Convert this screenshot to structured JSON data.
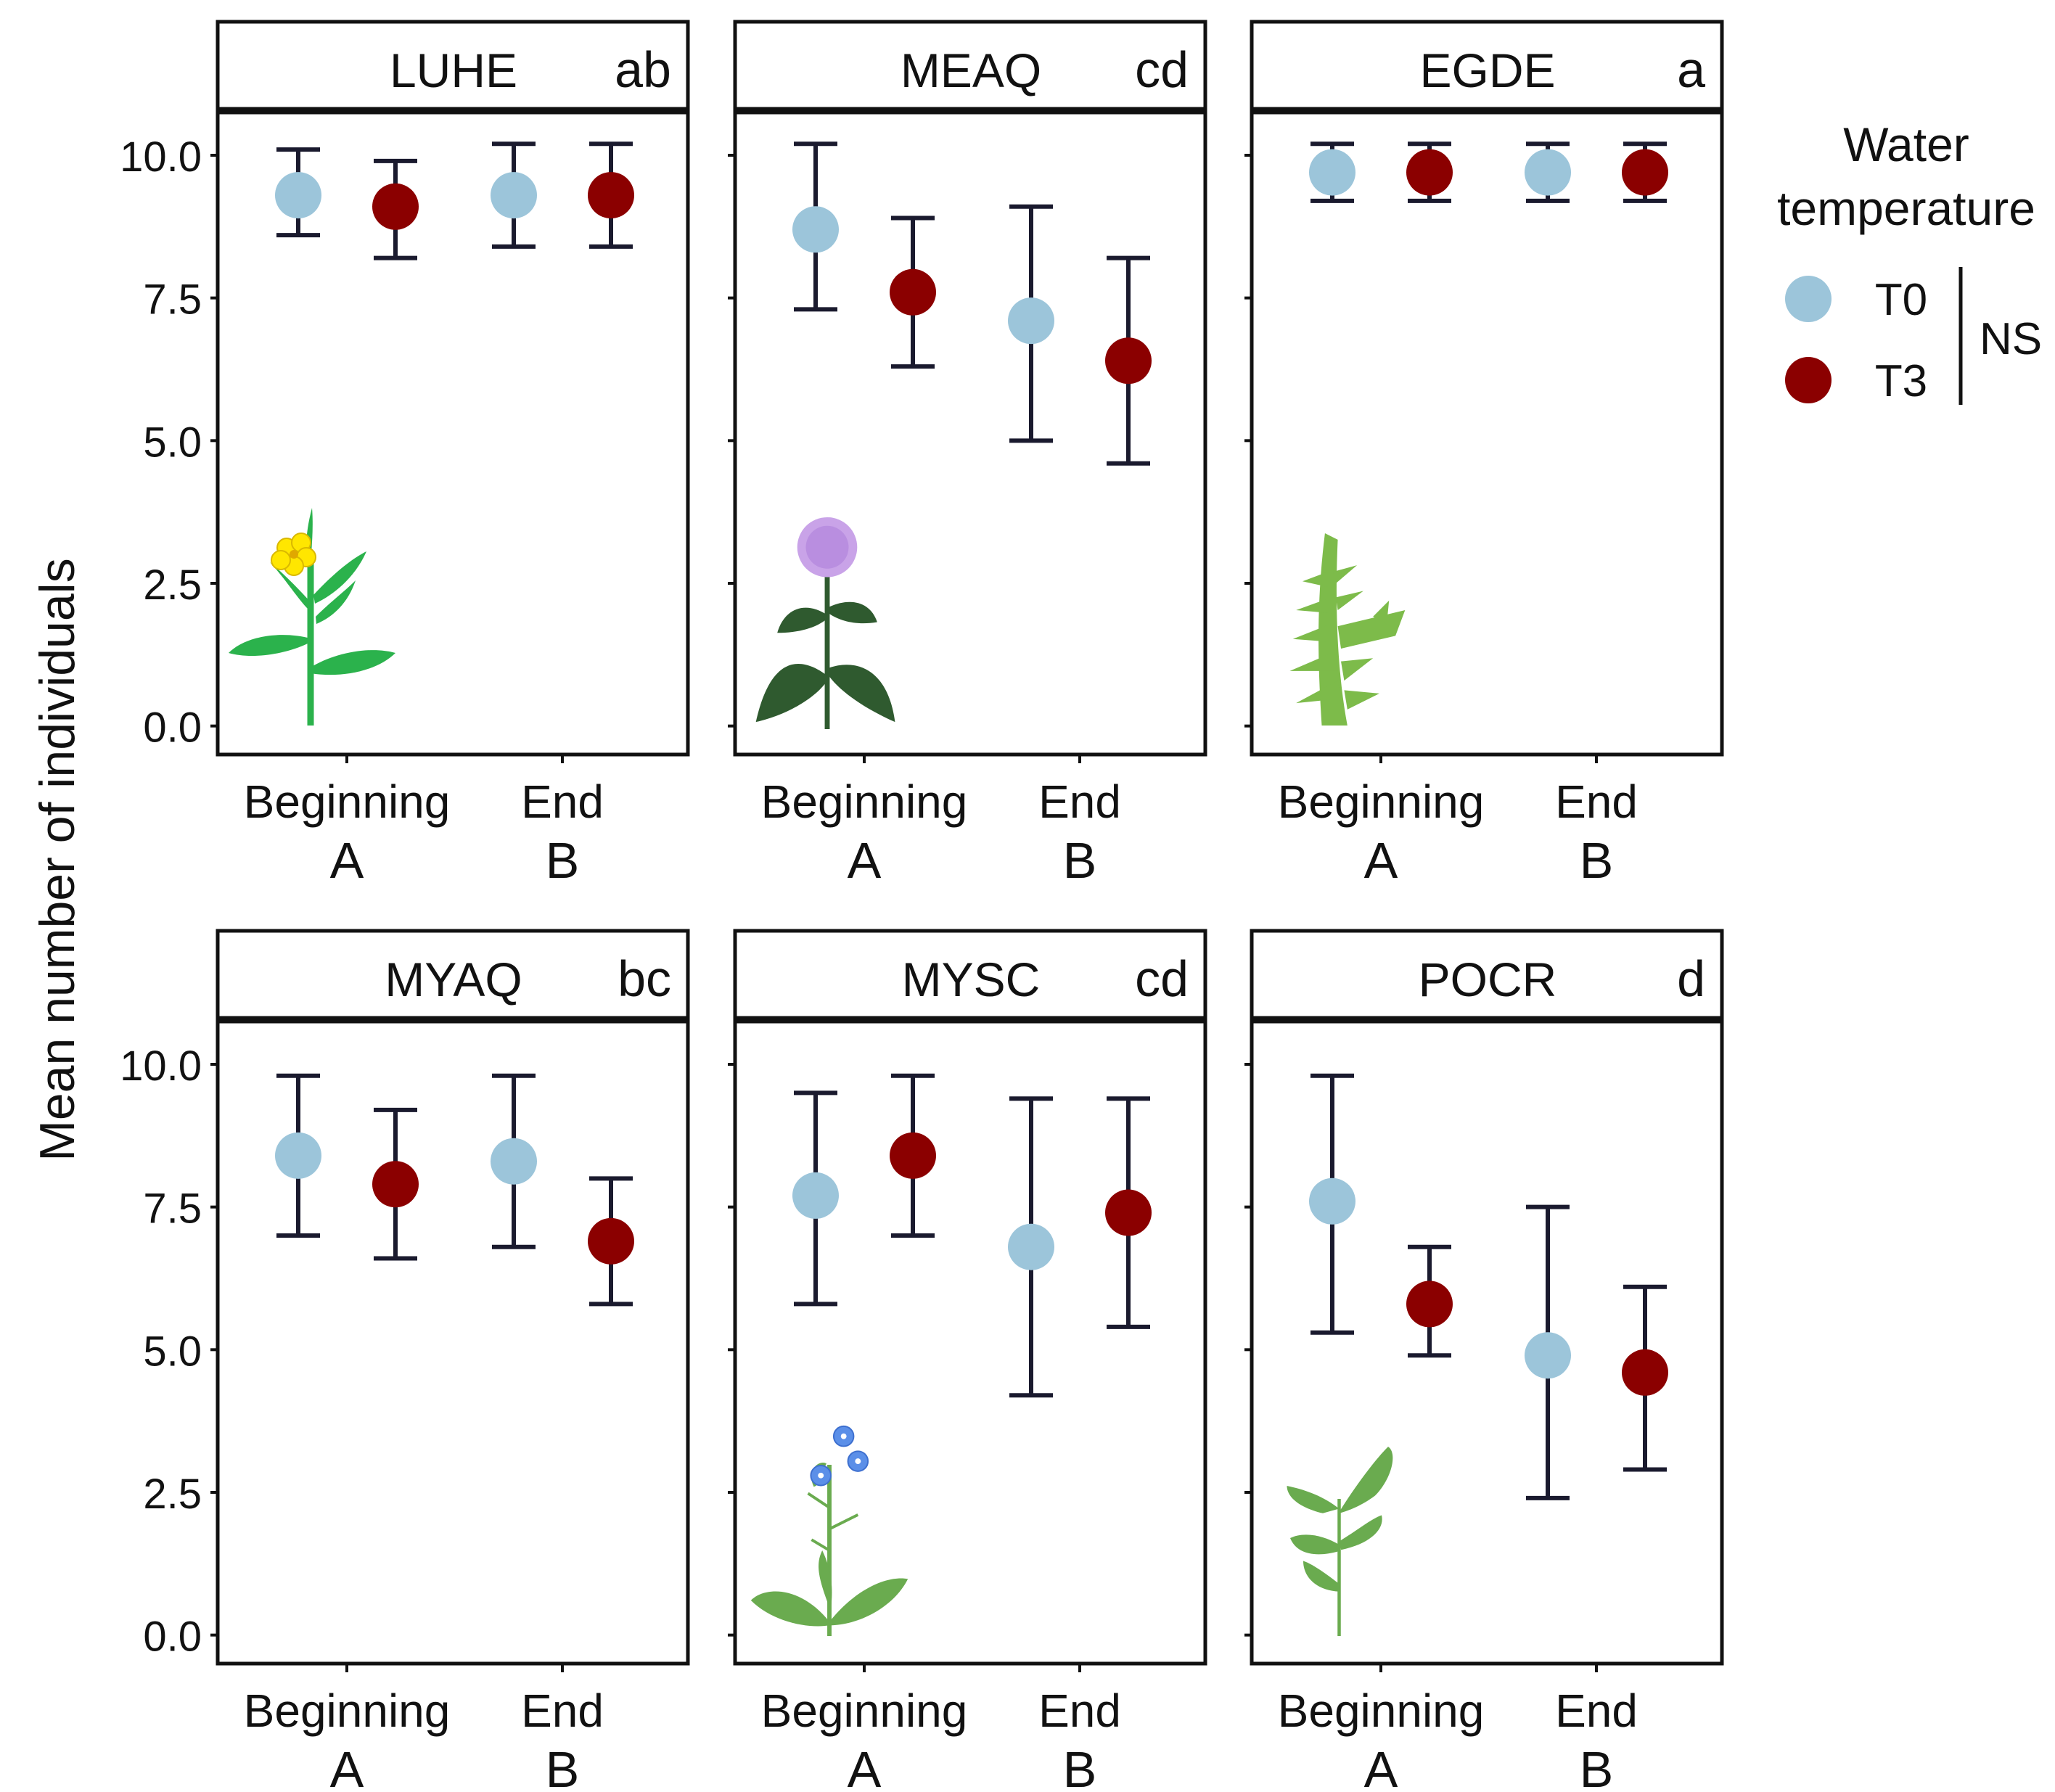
{
  "y_axis_label": "Mean number of individuals",
  "legend": {
    "title_line1": "Water",
    "title_line2": "temperature",
    "items": [
      {
        "label": "T0",
        "color": "#9CC5DA"
      },
      {
        "label": "T3",
        "color": "#8B0000"
      }
    ],
    "significance": "NS"
  },
  "colors": {
    "t0": "#9CC5DA",
    "t3": "#8B0000",
    "error_bar": "#1a1a2e",
    "frame": "#111111"
  },
  "chart_data": [
    {
      "type": "scatter",
      "panel": "LUHE",
      "letter": "ab",
      "categories": [
        "Beginning",
        "End"
      ],
      "category_letters": [
        "A",
        "B"
      ],
      "ylim": [
        -0.5,
        10.75
      ],
      "yticks": [
        "10.0",
        "7.5",
        "5.0",
        "2.5",
        "0.0"
      ],
      "ylabel": "Mean number of individuals",
      "plant_icon": "rapeseed-plant-icon",
      "series": [
        {
          "name": "T0",
          "mean": [
            9.3,
            9.3
          ],
          "lower": [
            8.6,
            8.4
          ],
          "upper": [
            10.1,
            10.2
          ]
        },
        {
          "name": "T3",
          "mean": [
            9.1,
            9.3
          ],
          "lower": [
            8.2,
            8.4
          ],
          "upper": [
            9.9,
            10.2
          ]
        }
      ]
    },
    {
      "type": "scatter",
      "panel": "MEAQ",
      "letter": "cd",
      "categories": [
        "Beginning",
        "End"
      ],
      "category_letters": [
        "A",
        "B"
      ],
      "ylim": [
        -0.5,
        10.75
      ],
      "yticks": [
        "10.0",
        "7.5",
        "5.0",
        "2.5",
        "0.0"
      ],
      "plant_icon": "water-mint-icon",
      "series": [
        {
          "name": "T0",
          "mean": [
            8.7,
            7.1
          ],
          "lower": [
            7.3,
            5.0
          ],
          "upper": [
            10.2,
            9.1
          ]
        },
        {
          "name": "T3",
          "mean": [
            7.6,
            6.4
          ],
          "lower": [
            6.3,
            4.6
          ],
          "upper": [
            8.9,
            8.2
          ]
        }
      ]
    },
    {
      "type": "scatter",
      "panel": "EGDE",
      "letter": "a",
      "categories": [
        "Beginning",
        "End"
      ],
      "category_letters": [
        "A",
        "B"
      ],
      "ylim": [
        -0.5,
        10.75
      ],
      "yticks": [
        "10.0",
        "7.5",
        "5.0",
        "2.5",
        "0.0"
      ],
      "plant_icon": "waterweed-icon",
      "series": [
        {
          "name": "T0",
          "mean": [
            9.7,
            9.7
          ],
          "lower": [
            9.2,
            9.2
          ],
          "upper": [
            10.2,
            10.2
          ]
        },
        {
          "name": "T3",
          "mean": [
            9.7,
            9.7
          ],
          "lower": [
            9.2,
            9.2
          ],
          "upper": [
            10.2,
            10.2
          ]
        }
      ]
    },
    {
      "type": "scatter",
      "panel": "MYAQ",
      "letter": "bc",
      "categories": [
        "Beginning",
        "End"
      ],
      "category_letters": [
        "A",
        "B"
      ],
      "ylim": [
        -0.5,
        10.75
      ],
      "yticks": [
        "10.0",
        "7.5",
        "5.0",
        "2.5",
        "0.0"
      ],
      "plant_icon": "parrot-feather-icon",
      "series": [
        {
          "name": "T0",
          "mean": [
            8.4,
            8.3
          ],
          "lower": [
            7.0,
            6.8
          ],
          "upper": [
            9.8,
            9.8
          ]
        },
        {
          "name": "T3",
          "mean": [
            7.9,
            6.9
          ],
          "lower": [
            6.6,
            5.8
          ],
          "upper": [
            9.2,
            8.0
          ]
        }
      ]
    },
    {
      "type": "scatter",
      "panel": "MYSC",
      "letter": "cd",
      "categories": [
        "Beginning",
        "End"
      ],
      "category_letters": [
        "A",
        "B"
      ],
      "ylim": [
        -0.5,
        10.75
      ],
      "yticks": [
        "10.0",
        "7.5",
        "5.0",
        "2.5",
        "0.0"
      ],
      "plant_icon": "forget-me-not-icon",
      "series": [
        {
          "name": "T0",
          "mean": [
            7.7,
            6.8
          ],
          "lower": [
            5.8,
            4.2
          ],
          "upper": [
            9.5,
            9.4
          ]
        },
        {
          "name": "T3",
          "mean": [
            8.4,
            7.4
          ],
          "lower": [
            7.0,
            5.4
          ],
          "upper": [
            9.8,
            9.4
          ]
        }
      ]
    },
    {
      "type": "scatter",
      "panel": "POCR",
      "letter": "d",
      "categories": [
        "Beginning",
        "End"
      ],
      "category_letters": [
        "A",
        "B"
      ],
      "ylim": [
        -0.5,
        10.75
      ],
      "yticks": [
        "10.0",
        "7.5",
        "5.0",
        "2.5",
        "0.0"
      ],
      "plant_icon": "curled-pondweed-icon",
      "series": [
        {
          "name": "T0",
          "mean": [
            7.6,
            4.9
          ],
          "lower": [
            5.3,
            2.4
          ],
          "upper": [
            9.8,
            7.5
          ]
        },
        {
          "name": "T3",
          "mean": [
            5.8,
            4.6
          ],
          "lower": [
            4.9,
            2.9
          ],
          "upper": [
            6.8,
            6.1
          ]
        }
      ]
    }
  ]
}
